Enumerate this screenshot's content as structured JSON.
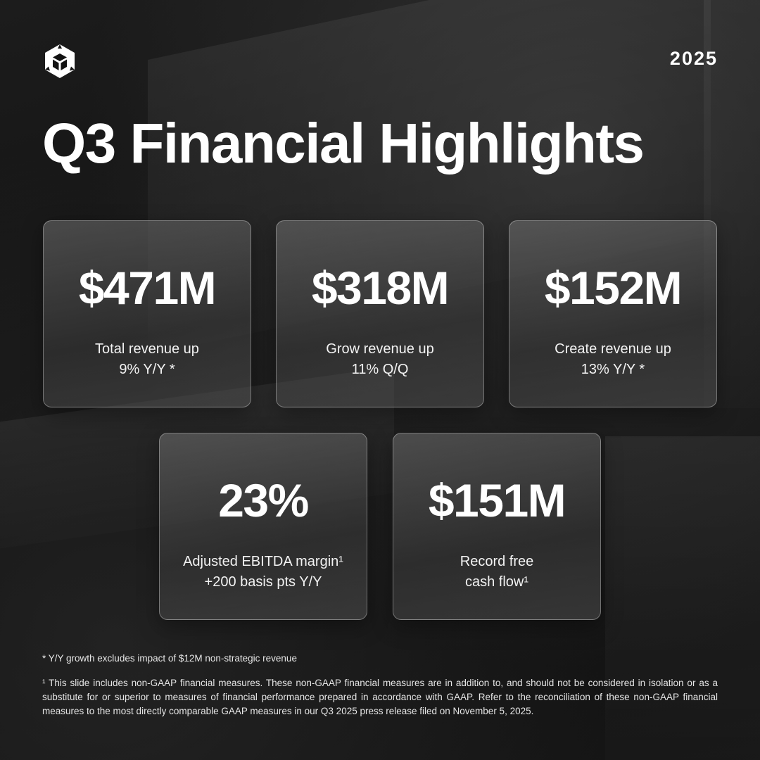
{
  "header": {
    "logo_icon": "unity-cube-logo-icon",
    "year": "2025",
    "title": "Q3 Financial Highlights"
  },
  "metrics": [
    {
      "value": "$471M",
      "line1": "Total revenue up",
      "line2": "9% Y/Y *"
    },
    {
      "value": "$318M",
      "line1": "Grow revenue up",
      "line2": "11% Q/Q"
    },
    {
      "value": "$152M",
      "line1": "Create revenue up",
      "line2": "13% Y/Y *"
    },
    {
      "value": "23%",
      "line1": "Adjusted EBITDA margin¹",
      "line2": "+200 basis pts Y/Y"
    },
    {
      "value": "$151M",
      "line1": "Record free",
      "line2": "cash flow¹"
    }
  ],
  "footnotes": {
    "asterisk": "* Y/Y growth excludes impact of $12M non-strategic revenue",
    "superscript": "¹ This slide includes non-GAAP financial measures. These non-GAAP financial measures are in addition to, and should not be considered in isolation or as a substitute for or superior to measures of financial performance prepared in accordance with GAAP.  Refer to the reconciliation of these non-GAAP financial measures to the most directly comparable GAAP measures in our Q3 2025 press release filed on November 5, 2025."
  },
  "colors": {
    "background": "#121212",
    "text": "#ffffff"
  }
}
